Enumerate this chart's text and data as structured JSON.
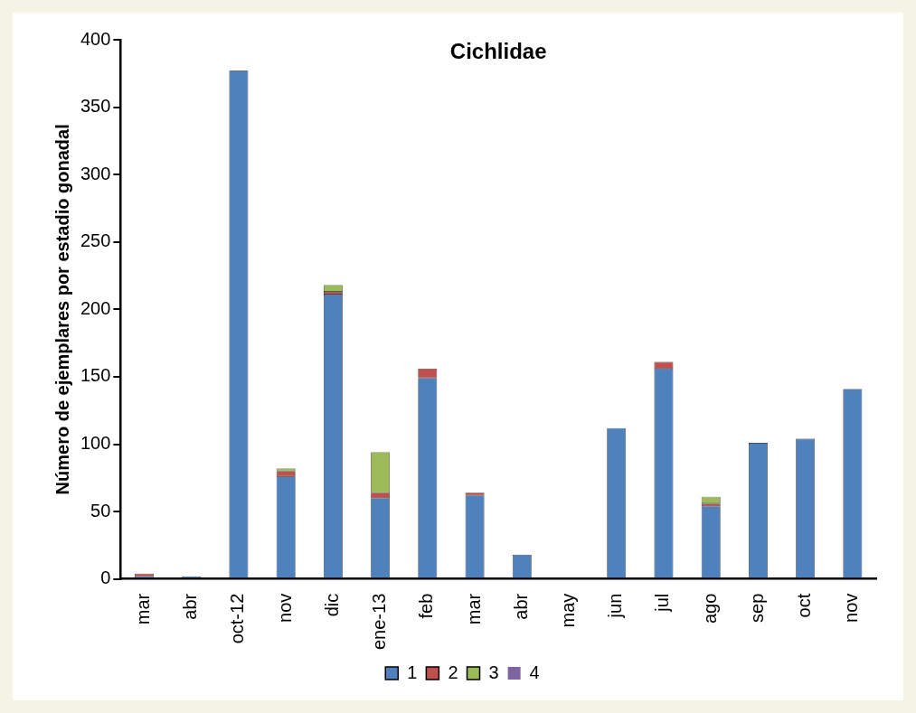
{
  "chart_data": {
    "type": "bar",
    "title": "Cichlidae",
    "ylabel": "Número de ejemplares por estadio gonadal",
    "stacked": true,
    "legend": "bottom",
    "grid": false,
    "categories": [
      "mar",
      "abr",
      "oct-12",
      "nov",
      "dic",
      "ene-13",
      "feb",
      "mar",
      "abr",
      "may",
      "jun",
      "jul",
      "ago",
      "sep",
      "oct",
      "nov"
    ],
    "ylim": [
      0,
      400
    ],
    "yticks": [
      0,
      50,
      100,
      150,
      200,
      250,
      300,
      350,
      400
    ],
    "series": [
      {
        "name": "1",
        "color": "#4f81bd",
        "values": [
          2,
          2,
          377,
          76,
          211,
          60,
          149,
          62,
          18,
          0,
          112,
          156,
          54,
          101,
          104,
          141
        ]
      },
      {
        "name": "2",
        "color": "#c0504d",
        "values": [
          2,
          0,
          0,
          4,
          2,
          4,
          7,
          2,
          0,
          0,
          0,
          5,
          2,
          0,
          0,
          0
        ]
      },
      {
        "name": "3",
        "color": "#9bbb59",
        "values": [
          0,
          0,
          0,
          2,
          5,
          30,
          0,
          0,
          0,
          0,
          0,
          0,
          5,
          0,
          0,
          0
        ]
      },
      {
        "name": "4",
        "color": "#8064a2",
        "values": [
          0,
          0,
          0,
          0,
          0,
          0,
          0,
          0,
          0,
          0,
          0,
          0,
          0,
          0,
          0,
          0
        ]
      }
    ]
  }
}
